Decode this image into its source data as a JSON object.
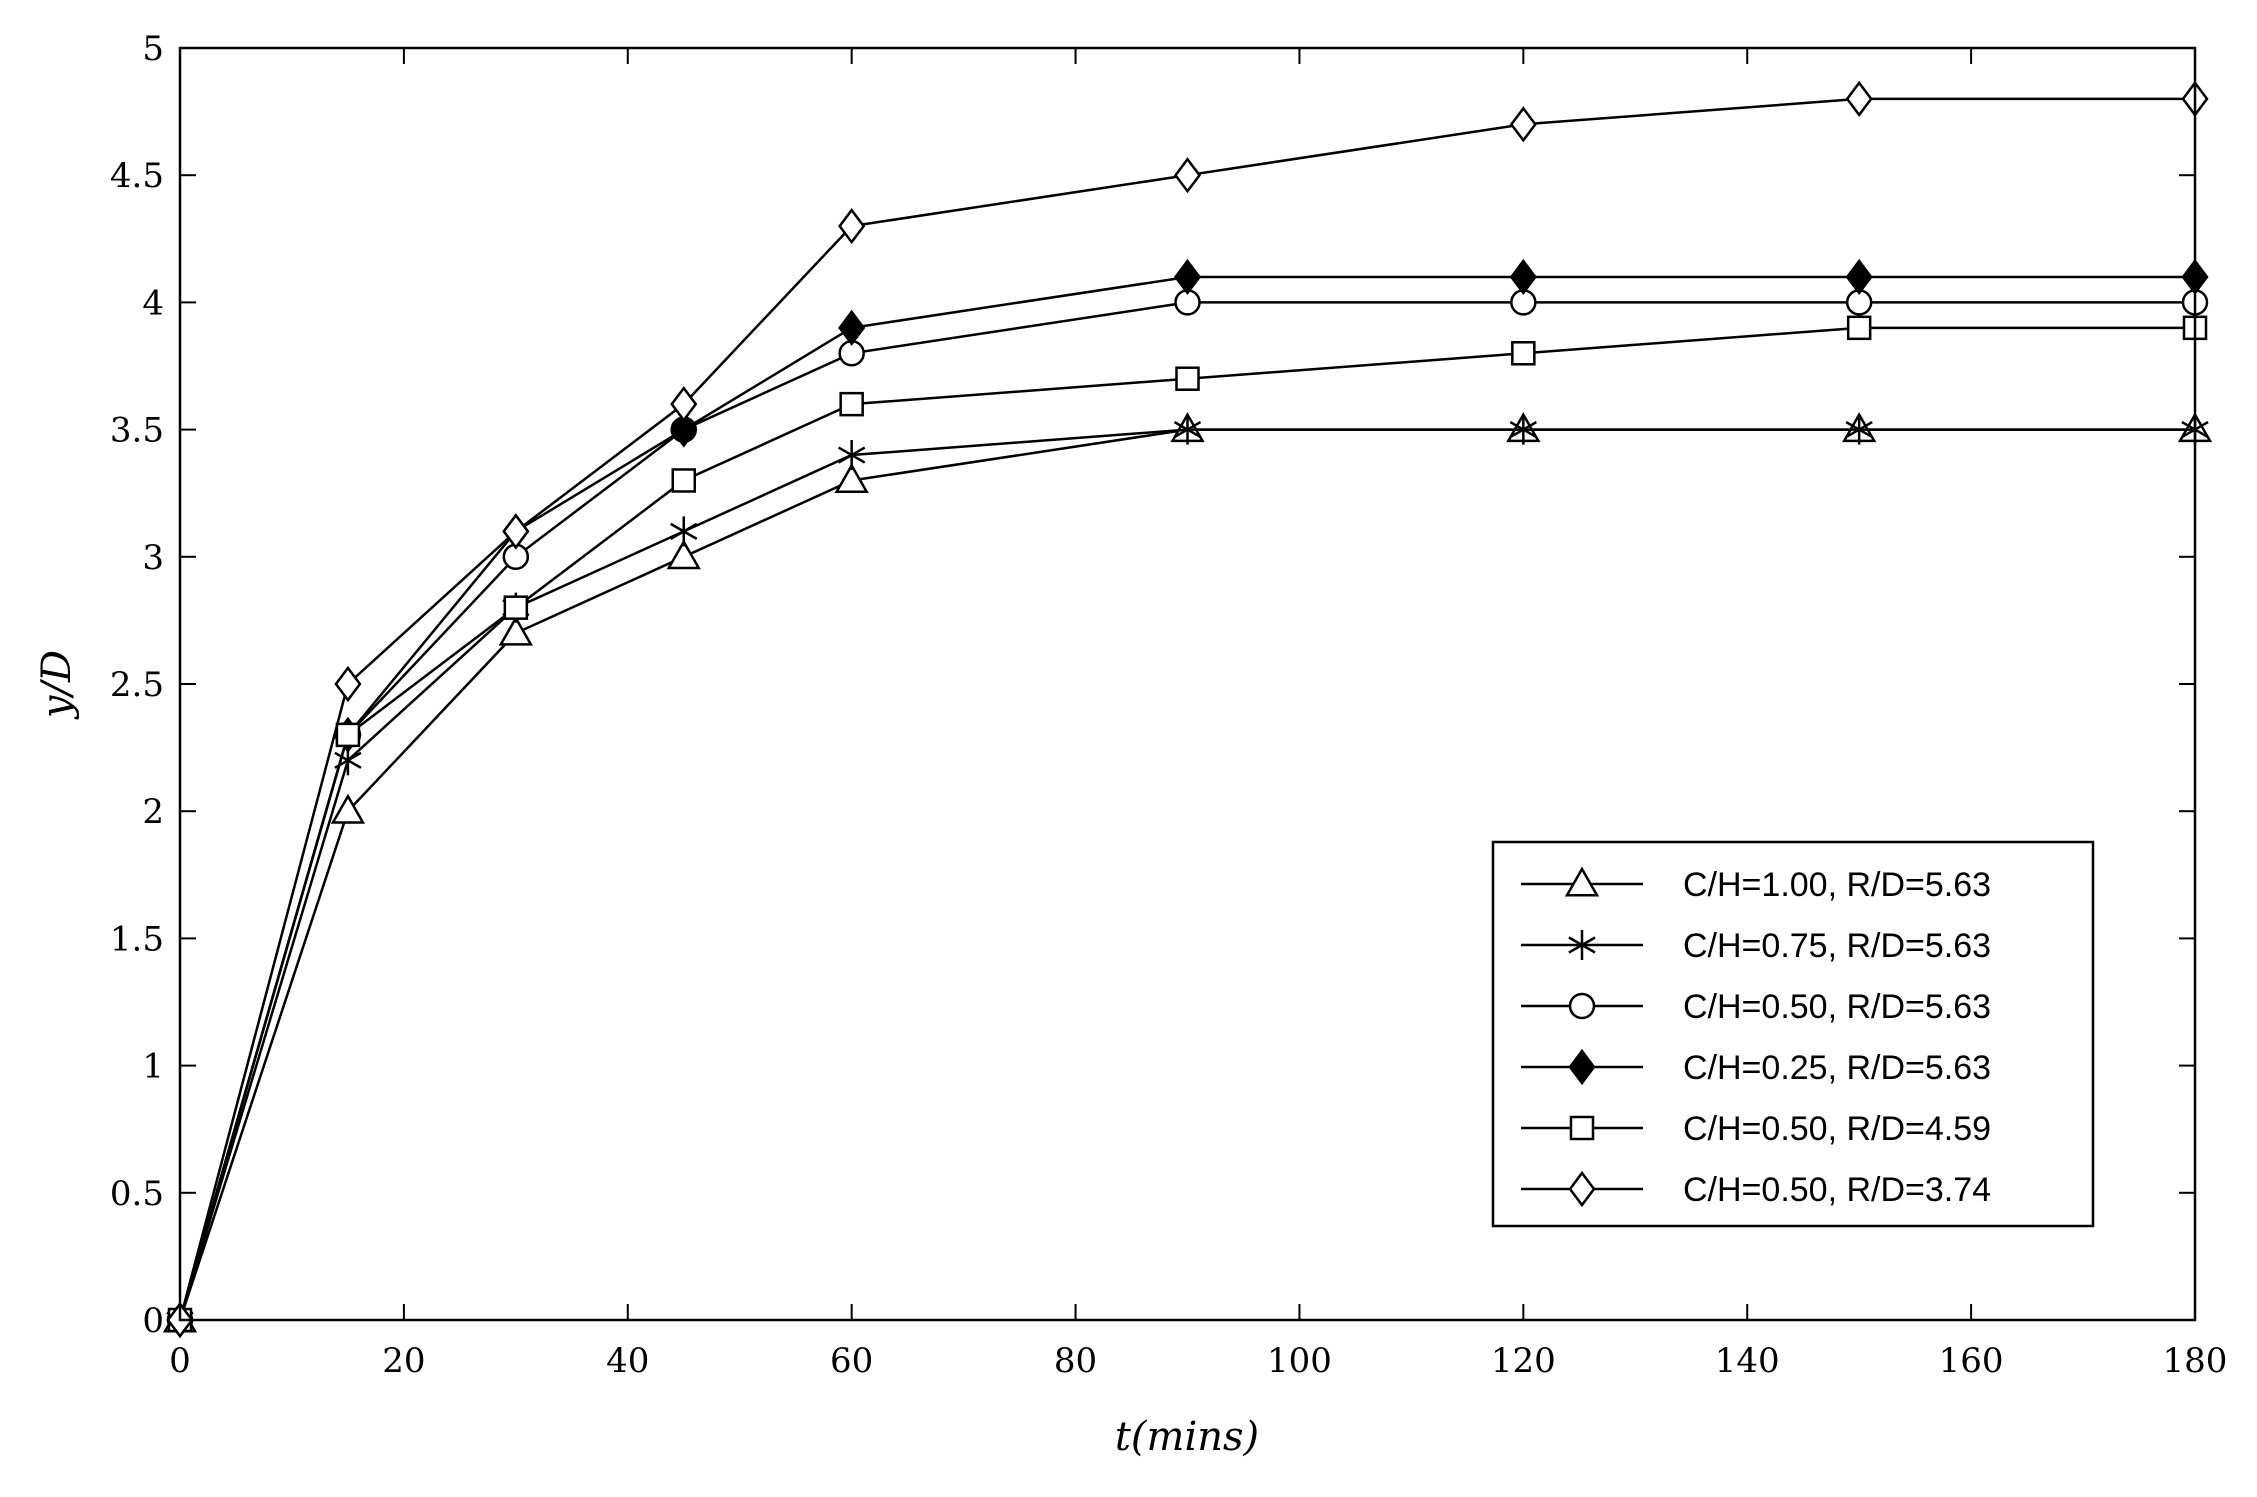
{
  "chart_data": {
    "type": "line",
    "xlabel": "t(mins)",
    "ylabel": "y/D",
    "xlim": [
      0,
      180
    ],
    "ylim": [
      0,
      5
    ],
    "xticks": [
      0,
      20,
      40,
      60,
      80,
      100,
      120,
      140,
      160,
      180
    ],
    "yticks": [
      0,
      0.5,
      1,
      1.5,
      2,
      2.5,
      3,
      3.5,
      4,
      4.5,
      5
    ],
    "ytick_labels": [
      "0",
      "0.5",
      "1",
      "1.5",
      "2",
      "2.5",
      "3",
      "3.5",
      "4",
      "4.5",
      "5"
    ],
    "x": [
      0,
      15,
      30,
      45,
      60,
      90,
      120,
      150,
      180
    ],
    "legend_position": "lower-right",
    "series": [
      {
        "name": "C/H=1.00, R/D=5.63",
        "marker": "triangle",
        "values": [
          0,
          2.0,
          2.7,
          3.0,
          3.3,
          3.5,
          3.5,
          3.5,
          3.5
        ]
      },
      {
        "name": "C/H=0.75, R/D=5.63",
        "marker": "asterisk",
        "values": [
          0,
          2.2,
          2.8,
          3.1,
          3.4,
          3.5,
          3.5,
          3.5,
          3.5
        ]
      },
      {
        "name": "C/H=0.50, R/D=5.63",
        "marker": "circle",
        "values": [
          0,
          2.3,
          3.0,
          3.5,
          3.8,
          4.0,
          4.0,
          4.0,
          4.0
        ]
      },
      {
        "name": "C/H=0.25, R/D=5.63",
        "marker": "filled-diamond",
        "values": [
          0,
          2.3,
          3.1,
          3.5,
          3.9,
          4.1,
          4.1,
          4.1,
          4.1
        ]
      },
      {
        "name": "C/H=0.50, R/D=4.59",
        "marker": "square",
        "values": [
          0,
          2.3,
          2.8,
          3.3,
          3.6,
          3.7,
          3.8,
          3.9,
          3.9
        ]
      },
      {
        "name": "C/H=0.50, R/D=3.74",
        "marker": "diamond",
        "values": [
          0,
          2.5,
          3.1,
          3.6,
          4.3,
          4.5,
          4.7,
          4.8,
          4.8
        ]
      }
    ]
  }
}
